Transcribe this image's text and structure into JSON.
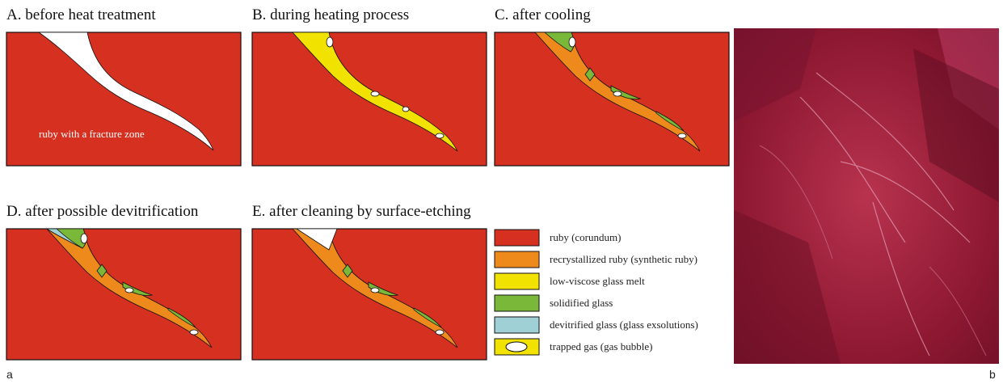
{
  "panels": [
    {
      "title": "A. before heat treatment",
      "annotation": "ruby with a fracture zone"
    },
    {
      "title": "B. during heating process"
    },
    {
      "title": "C. after cooling"
    },
    {
      "title": "D. after possible devitrification"
    },
    {
      "title": "E. after cleaning by surface-etching"
    }
  ],
  "legend": [
    {
      "label": "ruby  (corundum)"
    },
    {
      "label": "recrystallized ruby (synthetic ruby)"
    },
    {
      "label": "low-viscose glass melt"
    },
    {
      "label": "solidified glass"
    },
    {
      "label": "devitrified glass (glass exsolutions)"
    },
    {
      "label": "trapped gas (gas bubble)"
    }
  ],
  "figure_labels": {
    "left": "a",
    "right": "b"
  }
}
